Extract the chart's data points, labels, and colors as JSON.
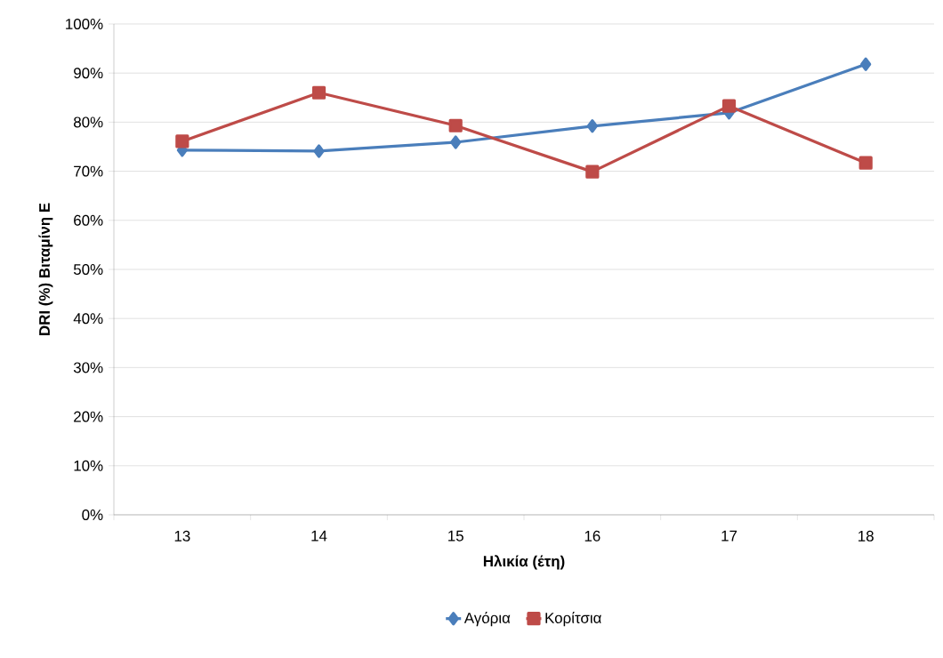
{
  "chart_data": {
    "type": "line",
    "xlabel": "Ηλικία (έτη)",
    "ylabel": "DRI (%) Βιταμίνη Ε",
    "categories": [
      "13",
      "14",
      "15",
      "16",
      "17",
      "18"
    ],
    "series": [
      {
        "name": "Αγόρια",
        "color": "#4a7ebb",
        "marker": "diamond",
        "values": [
          74.3,
          74.1,
          75.9,
          79.2,
          81.9,
          91.8
        ]
      },
      {
        "name": "Κορίτσια",
        "color": "#be4b48",
        "marker": "square",
        "values": [
          76.1,
          86.0,
          79.3,
          69.9,
          83.3,
          71.7
        ]
      }
    ],
    "ylim": [
      0,
      100
    ],
    "yticks": [
      {
        "value": 0,
        "label": "0%"
      },
      {
        "value": 10,
        "label": "10%"
      },
      {
        "value": 20,
        "label": "20%"
      },
      {
        "value": 30,
        "label": "30%"
      },
      {
        "value": 40,
        "label": "40%"
      },
      {
        "value": 50,
        "label": "50%"
      },
      {
        "value": 60,
        "label": "60%"
      },
      {
        "value": 70,
        "label": "70%"
      },
      {
        "value": 80,
        "label": "80%"
      },
      {
        "value": 90,
        "label": "90%"
      },
      {
        "value": 100,
        "label": "100%"
      }
    ],
    "grid": "y",
    "legend": "bottom",
    "line_style": "solid"
  }
}
